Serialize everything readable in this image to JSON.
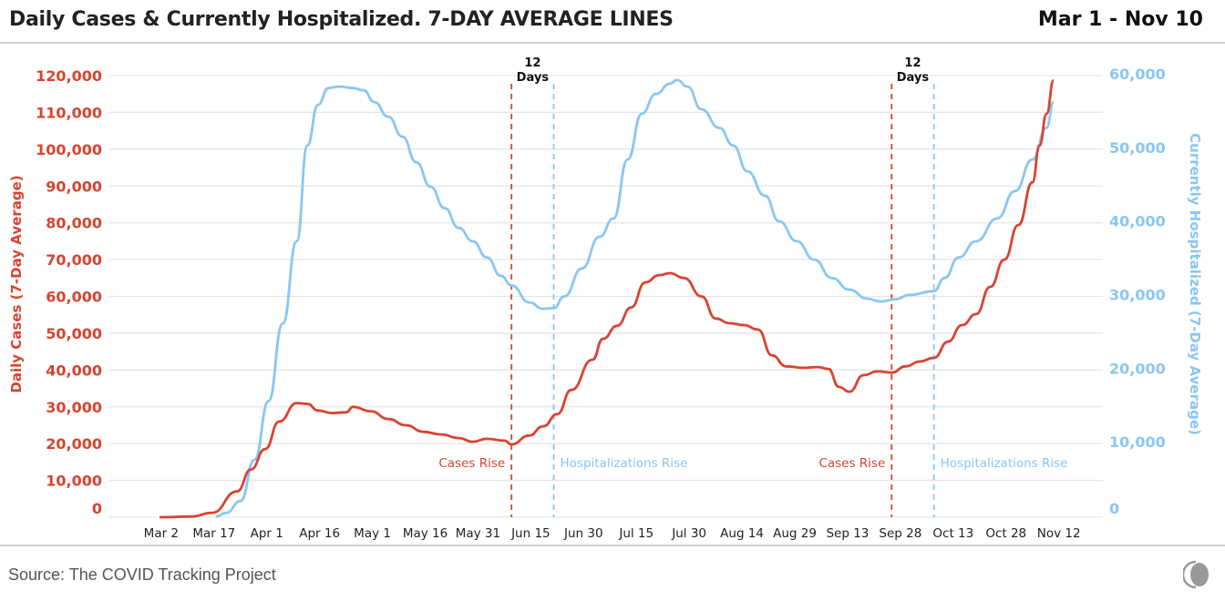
{
  "header": {
    "title": "Daily Cases & Currently Hospitalized. 7-DAY AVERAGE LINES",
    "date_range": "Mar 1 - Nov 10"
  },
  "footer": {
    "source": "Source: The COVID Tracking Project",
    "logo_icon": "covid-tracking-project-logo"
  },
  "chart_data": {
    "type": "line",
    "title": "Daily Cases & Currently Hospitalized. 7-DAY AVERAGE LINES",
    "ylabel_left": "Daily Cases (7-Day Average)",
    "ylabel_right": "Currently Hospitalized (7-Day Average)",
    "ylim_left": [
      0,
      120000
    ],
    "ylim_right": [
      0,
      60000
    ],
    "yticks_left": [
      "0",
      "10,000",
      "20,000",
      "30,000",
      "40,000",
      "50,000",
      "60,000",
      "70,000",
      "80,000",
      "90,000",
      "100,000",
      "110,000",
      "120,000"
    ],
    "yticks_right": [
      "0",
      "10,000",
      "20,000",
      "30,000",
      "40,000",
      "50,000",
      "60,000"
    ],
    "xlim": [
      "2020-03-01",
      "2020-11-10"
    ],
    "xticks": [
      "Mar 2",
      "Mar 17",
      "Apr 1",
      "Apr 16",
      "May 1",
      "May 16",
      "May 31",
      "Jun 15",
      "Jun 30",
      "Jul 15",
      "Jul 30",
      "Aug 14",
      "Aug 29",
      "Sep 13",
      "Sep 28",
      "Oct 13",
      "Oct 28",
      "Nov 12"
    ],
    "xtick_dates": [
      "2020-03-02",
      "2020-03-17",
      "2020-04-01",
      "2020-04-16",
      "2020-05-01",
      "2020-05-16",
      "2020-05-31",
      "2020-06-15",
      "2020-06-30",
      "2020-07-15",
      "2020-07-30",
      "2020-08-14",
      "2020-08-29",
      "2020-09-13",
      "2020-09-28",
      "2020-10-13",
      "2020-10-28",
      "2020-11-12"
    ],
    "grid": true,
    "colors": {
      "cases": "#d9432f",
      "hospitalized": "#8ac6f2"
    },
    "series": [
      {
        "axis": "left",
        "color": "#d9432f",
        "points": [
          [
            "2020-03-01",
            0
          ],
          [
            "2020-03-10",
            200
          ],
          [
            "2020-03-16",
            1200
          ],
          [
            "2020-03-23",
            7000
          ],
          [
            "2020-03-27",
            13000
          ],
          [
            "2020-03-31",
            18500
          ],
          [
            "2020-04-04",
            26000
          ],
          [
            "2020-04-09",
            31000
          ],
          [
            "2020-04-12",
            30800
          ],
          [
            "2020-04-15",
            29000
          ],
          [
            "2020-04-19",
            28300
          ],
          [
            "2020-04-23",
            28500
          ],
          [
            "2020-04-25",
            30000
          ],
          [
            "2020-04-30",
            28800
          ],
          [
            "2020-05-05",
            26700
          ],
          [
            "2020-05-10",
            25000
          ],
          [
            "2020-05-15",
            23200
          ],
          [
            "2020-05-20",
            22500
          ],
          [
            "2020-05-25",
            21500
          ],
          [
            "2020-05-29",
            20500
          ],
          [
            "2020-06-02",
            21300
          ],
          [
            "2020-06-07",
            20800
          ],
          [
            "2020-06-09",
            19800
          ],
          [
            "2020-06-14",
            22200
          ],
          [
            "2020-06-18",
            24700
          ],
          [
            "2020-06-22",
            28000
          ],
          [
            "2020-06-26",
            34600
          ],
          [
            "2020-07-02",
            42800
          ],
          [
            "2020-07-05",
            48500
          ],
          [
            "2020-07-09",
            52000
          ],
          [
            "2020-07-13",
            57000
          ],
          [
            "2020-07-17",
            63800
          ],
          [
            "2020-07-21",
            65800
          ],
          [
            "2020-07-24",
            66300
          ],
          [
            "2020-07-28",
            65000
          ],
          [
            "2020-08-02",
            60000
          ],
          [
            "2020-08-06",
            54000
          ],
          [
            "2020-08-10",
            52700
          ],
          [
            "2020-08-14",
            52200
          ],
          [
            "2020-08-18",
            51000
          ],
          [
            "2020-08-22",
            44000
          ],
          [
            "2020-08-26",
            41000
          ],
          [
            "2020-08-31",
            40600
          ],
          [
            "2020-09-04",
            40800
          ],
          [
            "2020-09-07",
            40300
          ],
          [
            "2020-09-10",
            35400
          ],
          [
            "2020-09-13",
            34100
          ],
          [
            "2020-09-17",
            38600
          ],
          [
            "2020-09-21",
            39600
          ],
          [
            "2020-09-25",
            39300
          ],
          [
            "2020-09-29",
            41000
          ],
          [
            "2020-10-03",
            42300
          ],
          [
            "2020-10-07",
            43300
          ],
          [
            "2020-10-11",
            47700
          ],
          [
            "2020-10-15",
            52200
          ],
          [
            "2020-10-19",
            55200
          ],
          [
            "2020-10-23",
            62600
          ],
          [
            "2020-10-27",
            70000
          ],
          [
            "2020-10-31",
            79400
          ],
          [
            "2020-11-04",
            91000
          ],
          [
            "2020-11-06",
            101000
          ],
          [
            "2020-11-08",
            109600
          ],
          [
            "2020-11-10",
            118700
          ]
        ]
      },
      {
        "axis": "right",
        "color": "#8ac6f2",
        "points": [
          [
            "2020-03-17",
            100
          ],
          [
            "2020-03-20",
            600
          ],
          [
            "2020-03-24",
            2200
          ],
          [
            "2020-03-28",
            7800
          ],
          [
            "2020-04-01",
            15800
          ],
          [
            "2020-04-05",
            26300
          ],
          [
            "2020-04-09",
            37500
          ],
          [
            "2020-04-12",
            50500
          ],
          [
            "2020-04-15",
            56000
          ],
          [
            "2020-04-18",
            58300
          ],
          [
            "2020-04-21",
            58500
          ],
          [
            "2020-04-25",
            58300
          ],
          [
            "2020-04-28",
            58000
          ],
          [
            "2020-05-01",
            56400
          ],
          [
            "2020-05-05",
            54400
          ],
          [
            "2020-05-09",
            51700
          ],
          [
            "2020-05-13",
            48200
          ],
          [
            "2020-05-17",
            44900
          ],
          [
            "2020-05-21",
            42000
          ],
          [
            "2020-05-25",
            39300
          ],
          [
            "2020-05-29",
            37500
          ],
          [
            "2020-06-02",
            35300
          ],
          [
            "2020-06-06",
            32800
          ],
          [
            "2020-06-09",
            31500
          ],
          [
            "2020-06-14",
            29200
          ],
          [
            "2020-06-18",
            28300
          ],
          [
            "2020-06-21",
            28400
          ],
          [
            "2020-06-24",
            30000
          ],
          [
            "2020-06-29",
            33800
          ],
          [
            "2020-07-04",
            38100
          ],
          [
            "2020-07-08",
            40600
          ],
          [
            "2020-07-12",
            48600
          ],
          [
            "2020-07-16",
            54800
          ],
          [
            "2020-07-20",
            57500
          ],
          [
            "2020-07-24",
            58900
          ],
          [
            "2020-07-26",
            59400
          ],
          [
            "2020-07-29",
            58500
          ],
          [
            "2020-08-02",
            55400
          ],
          [
            "2020-08-07",
            52900
          ],
          [
            "2020-08-11",
            50500
          ],
          [
            "2020-08-15",
            47000
          ],
          [
            "2020-08-20",
            43700
          ],
          [
            "2020-08-24",
            40200
          ],
          [
            "2020-08-29",
            37500
          ],
          [
            "2020-09-03",
            35000
          ],
          [
            "2020-09-08",
            32500
          ],
          [
            "2020-09-13",
            30900
          ],
          [
            "2020-09-18",
            29700
          ],
          [
            "2020-09-22",
            29300
          ],
          [
            "2020-09-26",
            29600
          ],
          [
            "2020-09-30",
            30200
          ],
          [
            "2020-10-07",
            30700
          ],
          [
            "2020-10-10",
            32500
          ],
          [
            "2020-10-14",
            35300
          ],
          [
            "2020-10-19",
            37500
          ],
          [
            "2020-10-25",
            40600
          ],
          [
            "2020-10-30",
            44300
          ],
          [
            "2020-11-04",
            48600
          ],
          [
            "2020-11-08",
            52900
          ],
          [
            "2020-11-10",
            56400
          ]
        ]
      }
    ],
    "annotations": [
      {
        "date": "2020-06-09",
        "label": "Cases Rise",
        "color": "#d9432f"
      },
      {
        "date": "2020-06-21",
        "label": "Hospitalizations Rise",
        "color": "#8ac6f2"
      },
      {
        "date": "2020-09-25",
        "label": "Cases Rise",
        "color": "#d9432f"
      },
      {
        "date": "2020-10-07",
        "label": "Hospitalizations Rise",
        "color": "#8ac6f2"
      }
    ],
    "gap_labels": [
      {
        "line1": "12",
        "line2": "Days"
      },
      {
        "line1": "12",
        "line2": "Days"
      }
    ]
  }
}
